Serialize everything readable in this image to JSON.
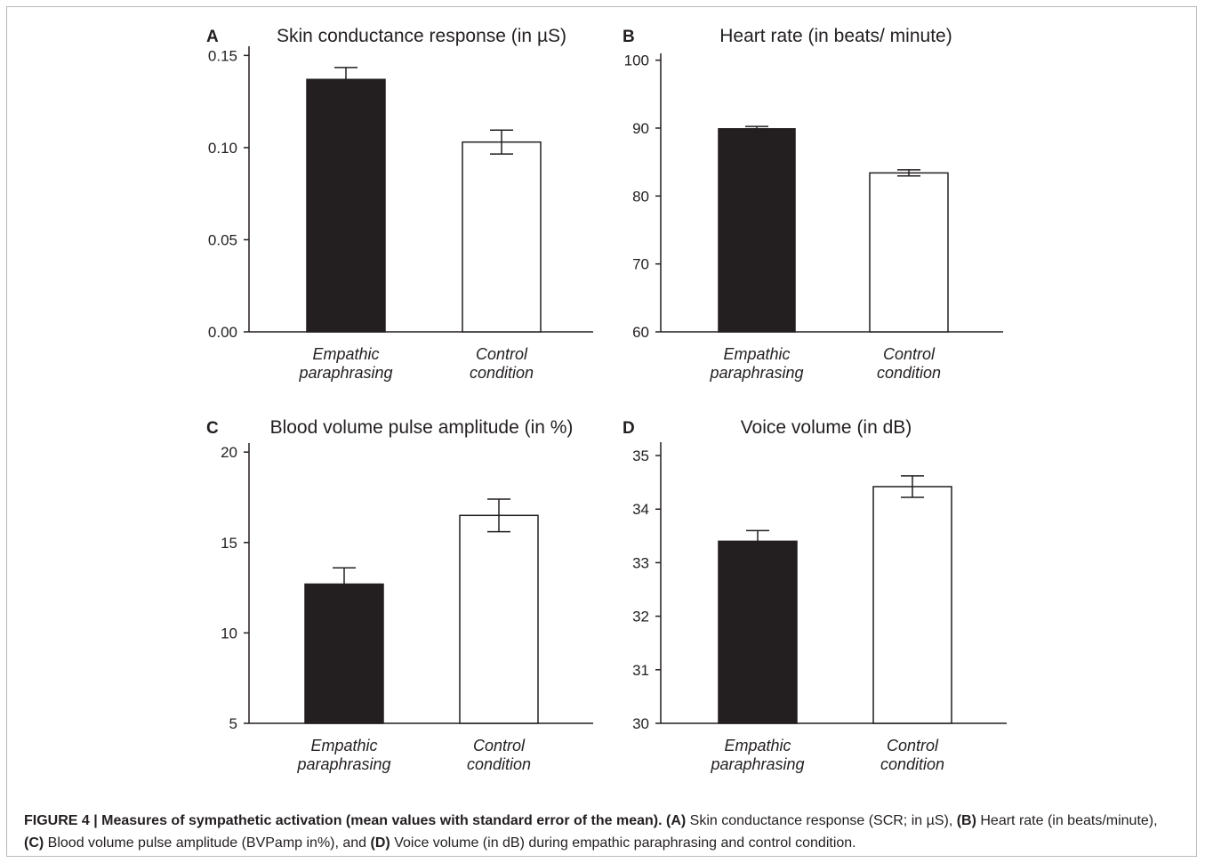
{
  "figure": {
    "caption_label": "FIGURE 4 | Measures of sympathetic activation (mean values with standard error of the mean).",
    "caption_parts": [
      {
        "bold": "(A)",
        "text": " Skin conductance response (SCR; in µS), "
      },
      {
        "bold": "(B)",
        "text": " Heart rate (in beats/minute), "
      },
      {
        "bold": "(C)",
        "text": " Blood volume pulse amplitude (BVPamp in%), and "
      },
      {
        "bold": "(D)",
        "text": " Voice volume (in dB) during empathic paraphrasing and control condition."
      }
    ]
  },
  "colors": {
    "filled_bar": "#231f20",
    "open_bar": "#ffffff",
    "axis": "#231f20",
    "text": "#231f20"
  },
  "chart_data": [
    {
      "panel": "A",
      "type": "bar",
      "title": "Skin conductance response (in µS)",
      "categories": [
        [
          "Empathic",
          "paraphrasing"
        ],
        [
          "Control",
          "condition"
        ]
      ],
      "values": [
        0.137,
        0.103
      ],
      "errors": [
        0.0065,
        0.0065
      ],
      "ylim": [
        0,
        0.155
      ],
      "ticks": [
        0,
        0.05,
        0.1,
        0.15
      ],
      "tick_labels": [
        "0.00",
        "0.05",
        "0.10",
        "0.15"
      ],
      "xlabel": "",
      "ylabel": ""
    },
    {
      "panel": "B",
      "type": "bar",
      "title": "Heart rate (in beats/ minute)",
      "categories": [
        [
          "Empathic",
          "paraphrasing"
        ],
        [
          "Control",
          "condition"
        ]
      ],
      "values": [
        89.9,
        83.4
      ],
      "errors": [
        0.35,
        0.45
      ],
      "ylim": [
        60,
        101
      ],
      "ticks": [
        60,
        70,
        80,
        90,
        100
      ],
      "tick_labels": [
        "60",
        "70",
        "80",
        "90",
        "100"
      ],
      "xlabel": "",
      "ylabel": ""
    },
    {
      "panel": "C",
      "type": "bar",
      "title": "Blood volume pulse amplitude (in %)",
      "categories": [
        [
          "Empathic",
          "paraphrasing"
        ],
        [
          "Control",
          "condition"
        ]
      ],
      "values": [
        12.7,
        16.5
      ],
      "errors": [
        0.9,
        0.9
      ],
      "ylim": [
        5,
        20.5
      ],
      "ticks": [
        5,
        10,
        15,
        20
      ],
      "tick_labels": [
        "5",
        "10",
        "15",
        "20"
      ],
      "xlabel": "",
      "ylabel": ""
    },
    {
      "panel": "D",
      "type": "bar",
      "title": "Voice volume (in dB)",
      "categories": [
        [
          "Empathic",
          "paraphrasing"
        ],
        [
          "Control",
          "condition"
        ]
      ],
      "values": [
        33.4,
        34.42
      ],
      "errors": [
        0.2,
        0.2
      ],
      "ylim": [
        30,
        35.25
      ],
      "ticks": [
        30,
        31,
        32,
        33,
        34,
        35
      ],
      "tick_labels": [
        "30",
        "31",
        "32",
        "33",
        "34",
        "35"
      ],
      "xlabel": "",
      "ylabel": ""
    }
  ]
}
